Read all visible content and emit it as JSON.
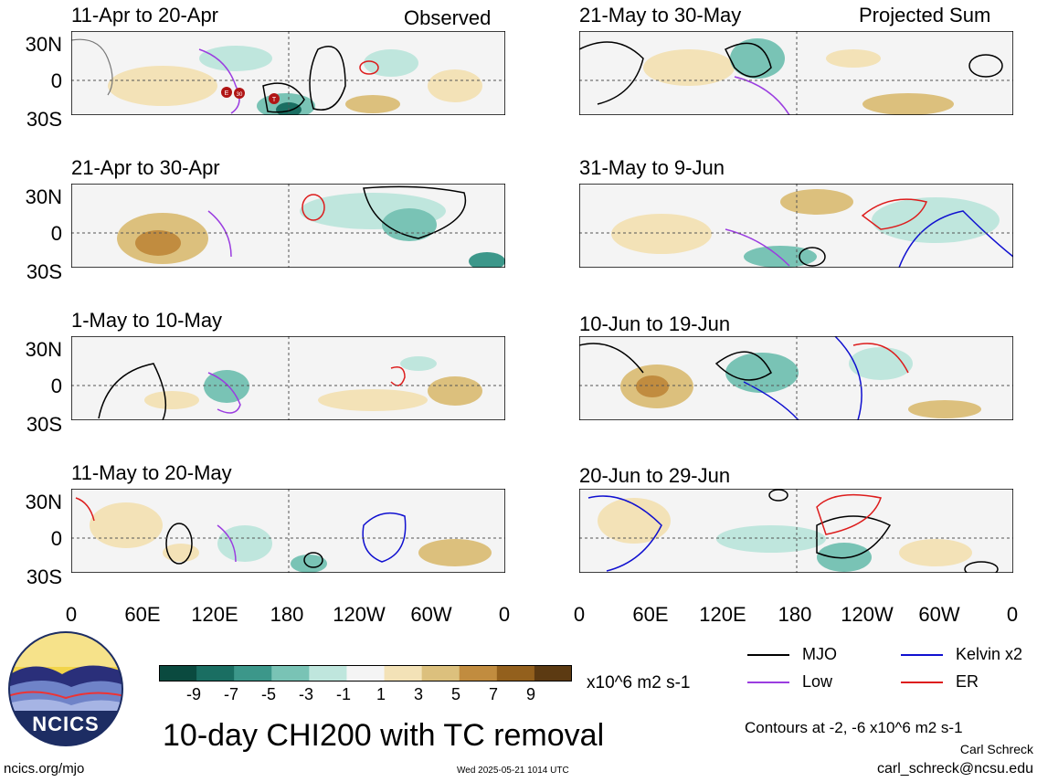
{
  "headers": {
    "left": "Observed",
    "right": "Projected Sum"
  },
  "panels": [
    {
      "title": "11-Apr to 20-Apr"
    },
    {
      "title": "21-Apr to 30-Apr"
    },
    {
      "title": "1-May to 10-May"
    },
    {
      "title": "11-May to 20-May"
    },
    {
      "title": "21-May to 30-May"
    },
    {
      "title": "31-May to 9-Jun"
    },
    {
      "title": "10-Jun to 19-Jun"
    },
    {
      "title": "20-Jun to 29-Jun"
    }
  ],
  "lat_labels": [
    "30N",
    "0",
    "30S"
  ],
  "lon_labels": [
    "0",
    "60E",
    "120E",
    "180",
    "120W",
    "60W",
    "0"
  ],
  "tc_markers": [
    "E",
    "30",
    "T"
  ],
  "colorbar": {
    "ticks": [
      "-9",
      "-7",
      "-5",
      "-3",
      "-1",
      "1",
      "3",
      "5",
      "7",
      "9"
    ],
    "units": "x10^6 m2 s-1",
    "colors": [
      "#0a4a3f",
      "#1a6e62",
      "#3c978a",
      "#79c3b5",
      "#bfe6dd",
      "#f4f4f4",
      "#f3e2b7",
      "#dcc07d",
      "#c18c3f",
      "#93601d",
      "#5c3a12"
    ]
  },
  "legend": {
    "items": [
      {
        "label": "MJO",
        "color": "#000000"
      },
      {
        "label": "Kelvin x2",
        "color": "#1010d0"
      },
      {
        "label": "Low",
        "color": "#9b3de0"
      },
      {
        "label": "ER",
        "color": "#dd1c1c"
      }
    ],
    "contours_note": "Contours at -2, -6 x10^6 m2 s-1",
    "author": "Carl Schreck",
    "email": "carl_schreck@ncsu.edu"
  },
  "main_title": "10-day CHI200 with TC removal",
  "logo_text": "NCICS",
  "footer": {
    "url": "ncics.org/mjo",
    "timestamp": "Wed 2025-05-21 1014 UTC"
  }
}
